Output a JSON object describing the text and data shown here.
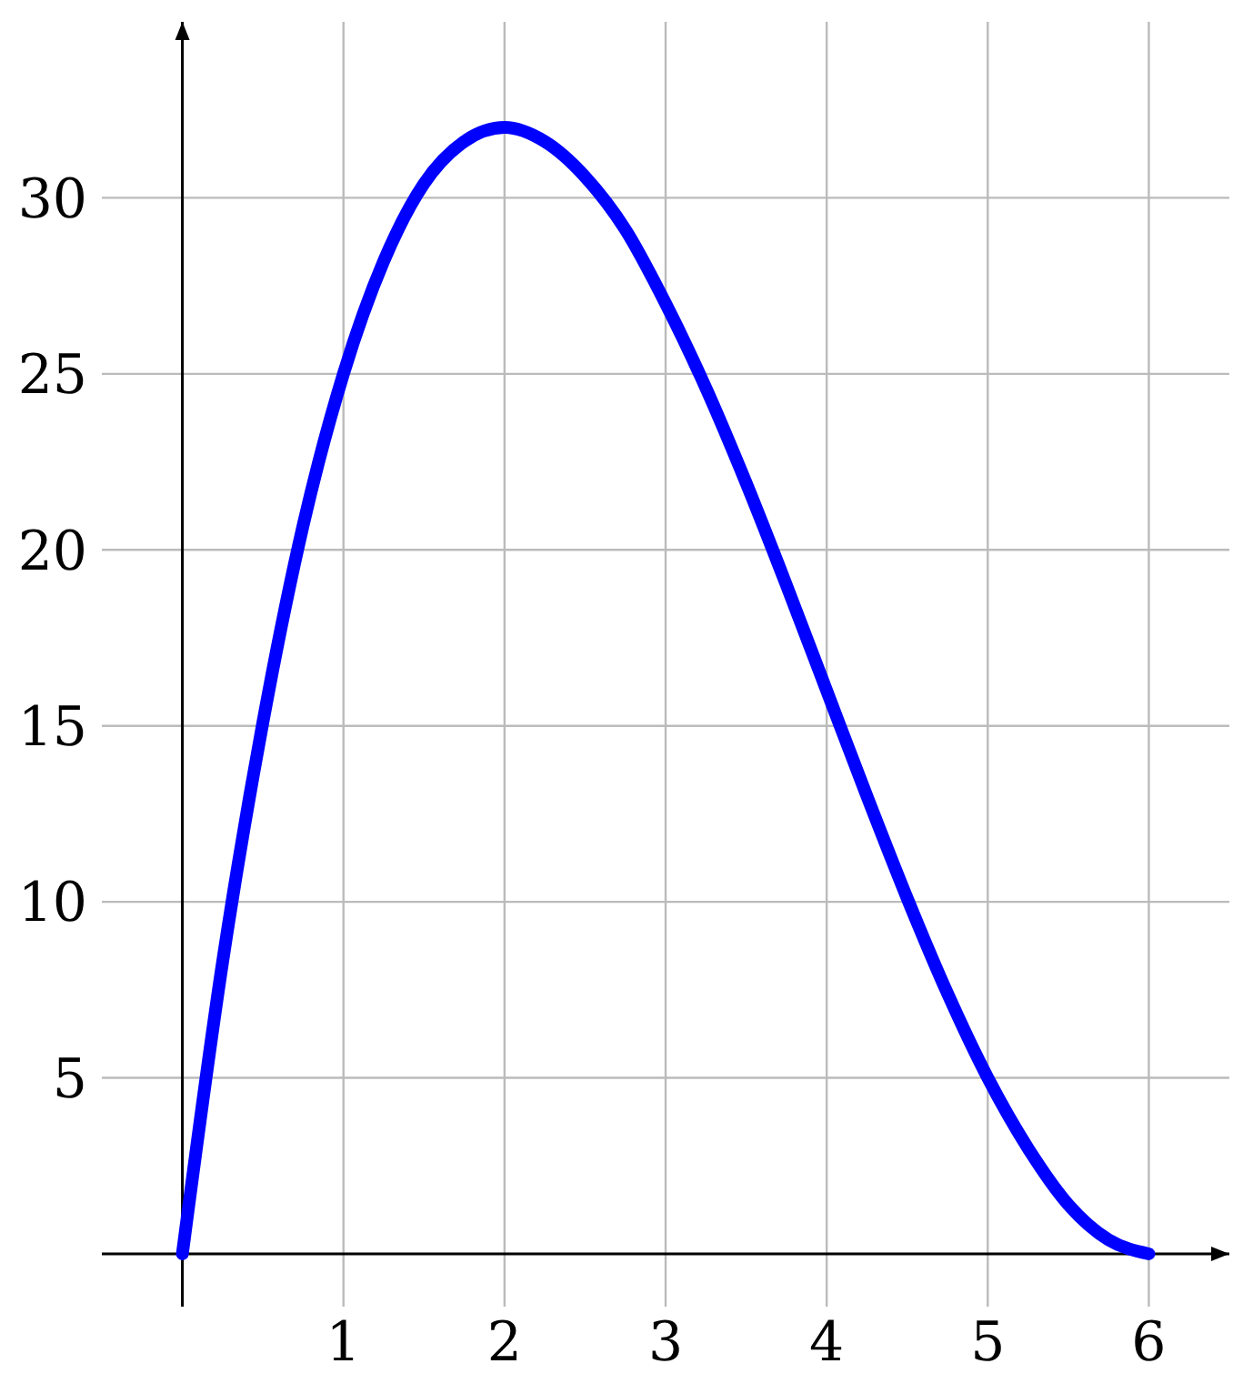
{
  "chart_data": {
    "type": "line",
    "x": [
      0,
      0.25,
      0.5,
      0.75,
      1,
      1.25,
      1.5,
      1.75,
      2,
      2.25,
      2.5,
      2.75,
      3,
      3.25,
      3.5,
      3.75,
      4,
      4.25,
      4.5,
      4.75,
      5,
      5.25,
      5.5,
      5.75,
      6
    ],
    "series": [
      {
        "color": "#0000ff",
        "values": [
          0,
          8.3,
          15.1,
          20.7,
          25,
          28.2,
          30.4,
          31.6,
          32,
          31.6,
          30.6,
          29.1,
          27,
          24.6,
          21.9,
          19,
          16,
          13,
          10.1,
          7.4,
          5,
          3,
          1.4,
          0.4,
          0
        ]
      }
    ],
    "xlim": [
      -0.5,
      6.5
    ],
    "ylim": [
      -1.5,
      35
    ],
    "xticks": [
      1,
      2,
      3,
      4,
      5,
      6
    ],
    "yticks": [
      5,
      10,
      15,
      20,
      25,
      30
    ],
    "grid": true,
    "marker": "none",
    "line_style": "solid"
  }
}
